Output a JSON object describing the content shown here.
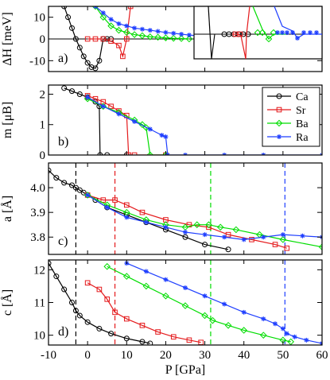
{
  "chart_data": [
    {
      "type": "line",
      "panel": "a)",
      "ylabel": "ΔH [meV]",
      "xlim": [
        -10,
        60
      ],
      "ylim": [
        -15,
        15
      ],
      "yticks": [
        "-10",
        "0",
        "10"
      ],
      "series": [
        {
          "name": "Ca",
          "color": "#000000",
          "marker": "circle",
          "x": [
            -6,
            -5,
            -4,
            -3,
            -2,
            -1,
            0,
            1,
            2,
            3,
            4,
            5,
            6
          ],
          "y": [
            15,
            10,
            5,
            0,
            -4,
            -8,
            -11,
            -13,
            -13.5,
            -10,
            0,
            0,
            0
          ]
        },
        {
          "name": "Sr",
          "color": "#e41a1c",
          "marker": "square",
          "x": [
            0,
            2,
            4,
            6,
            8,
            9,
            10,
            11
          ],
          "y": [
            0,
            0,
            0,
            -1,
            -3,
            -8,
            0,
            15
          ]
        },
        {
          "name": "Ba",
          "color": "#00dd00",
          "marker": "diamond",
          "x": [
            2,
            4,
            6,
            8,
            10,
            12,
            14,
            16,
            18,
            20,
            22,
            24,
            26
          ],
          "y": [
            15,
            10,
            6,
            4,
            3,
            2,
            1.5,
            1,
            0.8,
            0.5,
            0.3,
            0.2,
            0
          ]
        },
        {
          "name": "Ra",
          "color": "#1f3fff",
          "marker": "star",
          "x": [
            2,
            4,
            6,
            8,
            10,
            12,
            14,
            16,
            18,
            20,
            22,
            24,
            26,
            28,
            30,
            32,
            34,
            36,
            38,
            40,
            42,
            44
          ],
          "y": [
            15,
            12,
            9,
            7,
            6,
            5,
            4.5,
            4,
            3.5,
            3,
            2.6,
            2.2,
            1.8,
            1.5,
            1.2,
            1,
            0.8,
            0.6,
            0.5,
            0.4,
            0.3,
            0.2
          ]
        }
      ],
      "inset": "zoomed view of the transition region, y range about [-5, 5]"
    },
    {
      "type": "line",
      "panel": "b)",
      "ylabel": "m [μB]",
      "xlim": [
        -10,
        60
      ],
      "ylim": [
        0,
        2.3
      ],
      "yticks": [
        "0",
        "1",
        "2"
      ],
      "legend": "top-right",
      "series": [
        {
          "name": "Ca",
          "color": "#000000",
          "marker": "circle",
          "x": [
            -6,
            -4,
            -2,
            0,
            2,
            3,
            3.2,
            5,
            10
          ],
          "y": [
            2.2,
            2.1,
            2.0,
            1.9,
            1.75,
            1.6,
            0,
            0,
            0
          ]
        },
        {
          "name": "Sr",
          "color": "#e41a1c",
          "marker": "square",
          "x": [
            0,
            2,
            4,
            6,
            8,
            10,
            10.5,
            12,
            20
          ],
          "y": [
            1.95,
            1.85,
            1.75,
            1.6,
            1.45,
            1.3,
            0,
            0,
            0
          ]
        },
        {
          "name": "Ba",
          "color": "#00dd00",
          "marker": "diamond",
          "x": [
            0,
            4,
            8,
            12,
            14,
            15,
            16,
            20
          ],
          "y": [
            1.85,
            1.6,
            1.4,
            1.15,
            1.0,
            0.9,
            0,
            0
          ]
        },
        {
          "name": "Ra",
          "color": "#1f3fff",
          "marker": "star",
          "x": [
            0,
            4,
            8,
            12,
            16,
            19,
            20,
            20.5,
            25,
            35,
            45,
            60
          ],
          "y": [
            1.9,
            1.6,
            1.35,
            1.1,
            0.85,
            0.65,
            0.6,
            0,
            0,
            0,
            0,
            0
          ]
        }
      ]
    },
    {
      "type": "line",
      "panel": "c)",
      "ylabel": "a [Å]",
      "xlim": [
        -10,
        60
      ],
      "ylim": [
        3.73,
        4.1
      ],
      "yticks": [
        "3.8",
        "3.9",
        "4.0"
      ],
      "vlines": [
        {
          "x": -3,
          "color": "#000000"
        },
        {
          "x": 7,
          "color": "#e41a1c"
        },
        {
          "x": 31.5,
          "color": "#00dd00"
        },
        {
          "x": 50.5,
          "color": "#1f3fff"
        }
      ],
      "series": [
        {
          "name": "Ca",
          "color": "#000000",
          "marker": "circle",
          "x": [
            -10,
            -8,
            -6,
            -4,
            -3,
            -2,
            -1,
            0,
            2,
            5,
            10,
            15,
            20,
            25,
            30,
            36
          ],
          "y": [
            4.07,
            4.04,
            4.02,
            4.01,
            4.0,
            3.99,
            3.98,
            3.97,
            3.95,
            3.92,
            3.89,
            3.86,
            3.83,
            3.8,
            3.77,
            3.75
          ]
        },
        {
          "name": "Sr",
          "color": "#e41a1c",
          "marker": "square",
          "x": [
            0,
            4,
            7,
            10,
            14,
            20,
            26,
            31,
            36,
            42,
            48,
            51
          ],
          "y": [
            3.97,
            3.95,
            3.95,
            3.93,
            3.9,
            3.87,
            3.85,
            3.84,
            3.81,
            3.79,
            3.77,
            3.755
          ]
        },
        {
          "name": "Ba",
          "color": "#00dd00",
          "marker": "diamond",
          "x": [
            0,
            5,
            10,
            15,
            20,
            25,
            28,
            31,
            34,
            38,
            44,
            50,
            60
          ],
          "y": [
            3.97,
            3.93,
            3.9,
            3.87,
            3.85,
            3.84,
            3.85,
            3.85,
            3.84,
            3.83,
            3.81,
            3.79,
            3.76
          ]
        },
        {
          "name": "Ra",
          "color": "#1f3fff",
          "marker": "star",
          "x": [
            0,
            5,
            10,
            15,
            20,
            25,
            30,
            35,
            40,
            45,
            50,
            55,
            60
          ],
          "y": [
            3.97,
            3.92,
            3.88,
            3.86,
            3.84,
            3.82,
            3.81,
            3.8,
            3.79,
            3.8,
            3.81,
            3.805,
            3.8
          ]
        }
      ]
    },
    {
      "type": "line",
      "panel": "d)",
      "ylabel": "c [Å]",
      "xlabel": "P [GPa]",
      "xlim": [
        -10,
        60
      ],
      "ylim": [
        9.7,
        12.3
      ],
      "xticks": [
        "-10",
        "0",
        "10",
        "20",
        "30",
        "40",
        "50",
        "60"
      ],
      "yticks": [
        "10",
        "11",
        "12"
      ],
      "vlines": [
        {
          "x": -3,
          "color": "#000000"
        },
        {
          "x": 7,
          "color": "#e41a1c"
        },
        {
          "x": 31.5,
          "color": "#00dd00"
        },
        {
          "x": 50.5,
          "color": "#1f3fff"
        }
      ],
      "series": [
        {
          "name": "Ca",
          "color": "#000000",
          "marker": "circle",
          "x": [
            -10,
            -8,
            -6,
            -4,
            -3,
            -2,
            0,
            3,
            6,
            10,
            14,
            16
          ],
          "y": [
            12.2,
            11.8,
            11.4,
            11.0,
            10.75,
            10.6,
            10.4,
            10.2,
            10.05,
            9.9,
            9.8,
            9.75
          ]
        },
        {
          "name": "Sr",
          "color": "#e41a1c",
          "marker": "square",
          "x": [
            0,
            3,
            5,
            7,
            10,
            14,
            18,
            22,
            26,
            29
          ],
          "y": [
            11.6,
            11.4,
            11.1,
            10.7,
            10.5,
            10.3,
            10.1,
            9.95,
            9.85,
            9.78
          ]
        },
        {
          "name": "Ba",
          "color": "#00dd00",
          "marker": "diamond",
          "x": [
            5,
            10,
            15,
            20,
            25,
            30,
            32,
            36,
            40,
            45,
            50,
            52
          ],
          "y": [
            12.1,
            11.8,
            11.5,
            11.2,
            10.9,
            10.6,
            10.45,
            10.3,
            10.15,
            10.0,
            9.85,
            9.8
          ]
        },
        {
          "name": "Ra",
          "color": "#1f3fff",
          "marker": "star",
          "x": [
            10,
            15,
            20,
            25,
            30,
            35,
            40,
            45,
            48,
            50,
            51,
            53,
            56,
            60
          ],
          "y": [
            12.2,
            11.95,
            11.7,
            11.45,
            11.2,
            10.95,
            10.7,
            10.5,
            10.35,
            10.2,
            10.05,
            9.95,
            9.85,
            9.75
          ]
        }
      ]
    }
  ]
}
